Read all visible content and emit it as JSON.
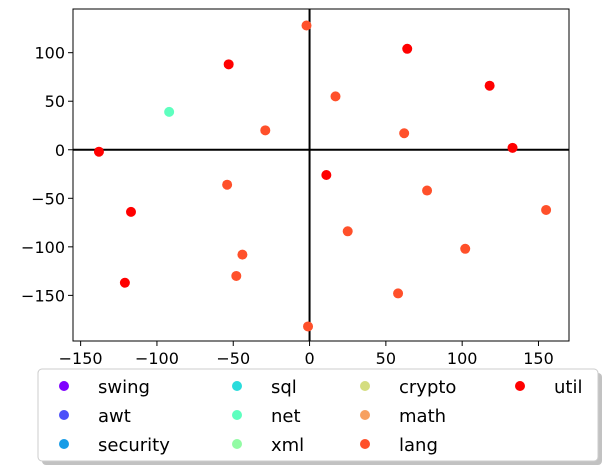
{
  "chart_data": {
    "type": "scatter",
    "title": "",
    "xlabel": "",
    "ylabel": "",
    "xlim": [
      -155,
      170
    ],
    "ylim": [
      -197,
      145
    ],
    "xticks": [
      -150,
      -100,
      -50,
      0,
      50,
      100,
      150
    ],
    "yticks": [
      -150,
      -100,
      -50,
      0,
      50,
      100
    ],
    "reference_lines": {
      "x": 0,
      "y": 0
    },
    "grid": false,
    "legend_position": "bottom",
    "series": [
      {
        "name": "swing",
        "color": "#7f00ff",
        "points": []
      },
      {
        "name": "awt",
        "color": "#4b50f9",
        "points": []
      },
      {
        "name": "security",
        "color": "#169ce7",
        "points": []
      },
      {
        "name": "sql",
        "color": "#2adcdc",
        "points": []
      },
      {
        "name": "net",
        "color": "#5effbf",
        "points": [
          [
            -92,
            39
          ]
        ]
      },
      {
        "name": "xml",
        "color": "#92fba4",
        "points": []
      },
      {
        "name": "crypto",
        "color": "#d4dd80",
        "points": []
      },
      {
        "name": "math",
        "color": "#f7a060",
        "points": []
      },
      {
        "name": "lang",
        "color": "#ff502a",
        "points": [
          [
            -2,
            128
          ],
          [
            17,
            55
          ],
          [
            62,
            17
          ],
          [
            -29,
            20
          ],
          [
            -54,
            -36
          ],
          [
            77,
            -42
          ],
          [
            155,
            -62
          ],
          [
            25,
            -84
          ],
          [
            102,
            -102
          ],
          [
            -44,
            -108
          ],
          [
            -48,
            -130
          ],
          [
            58,
            -148
          ],
          [
            -1,
            -182
          ]
        ]
      },
      {
        "name": "util",
        "color": "#ff0000",
        "points": [
          [
            64,
            104
          ],
          [
            -53,
            88
          ],
          [
            118,
            66
          ],
          [
            -138,
            -2
          ],
          [
            133,
            2
          ],
          [
            11,
            -26
          ],
          [
            -117,
            -64
          ],
          [
            -121,
            -137
          ]
        ]
      }
    ]
  }
}
